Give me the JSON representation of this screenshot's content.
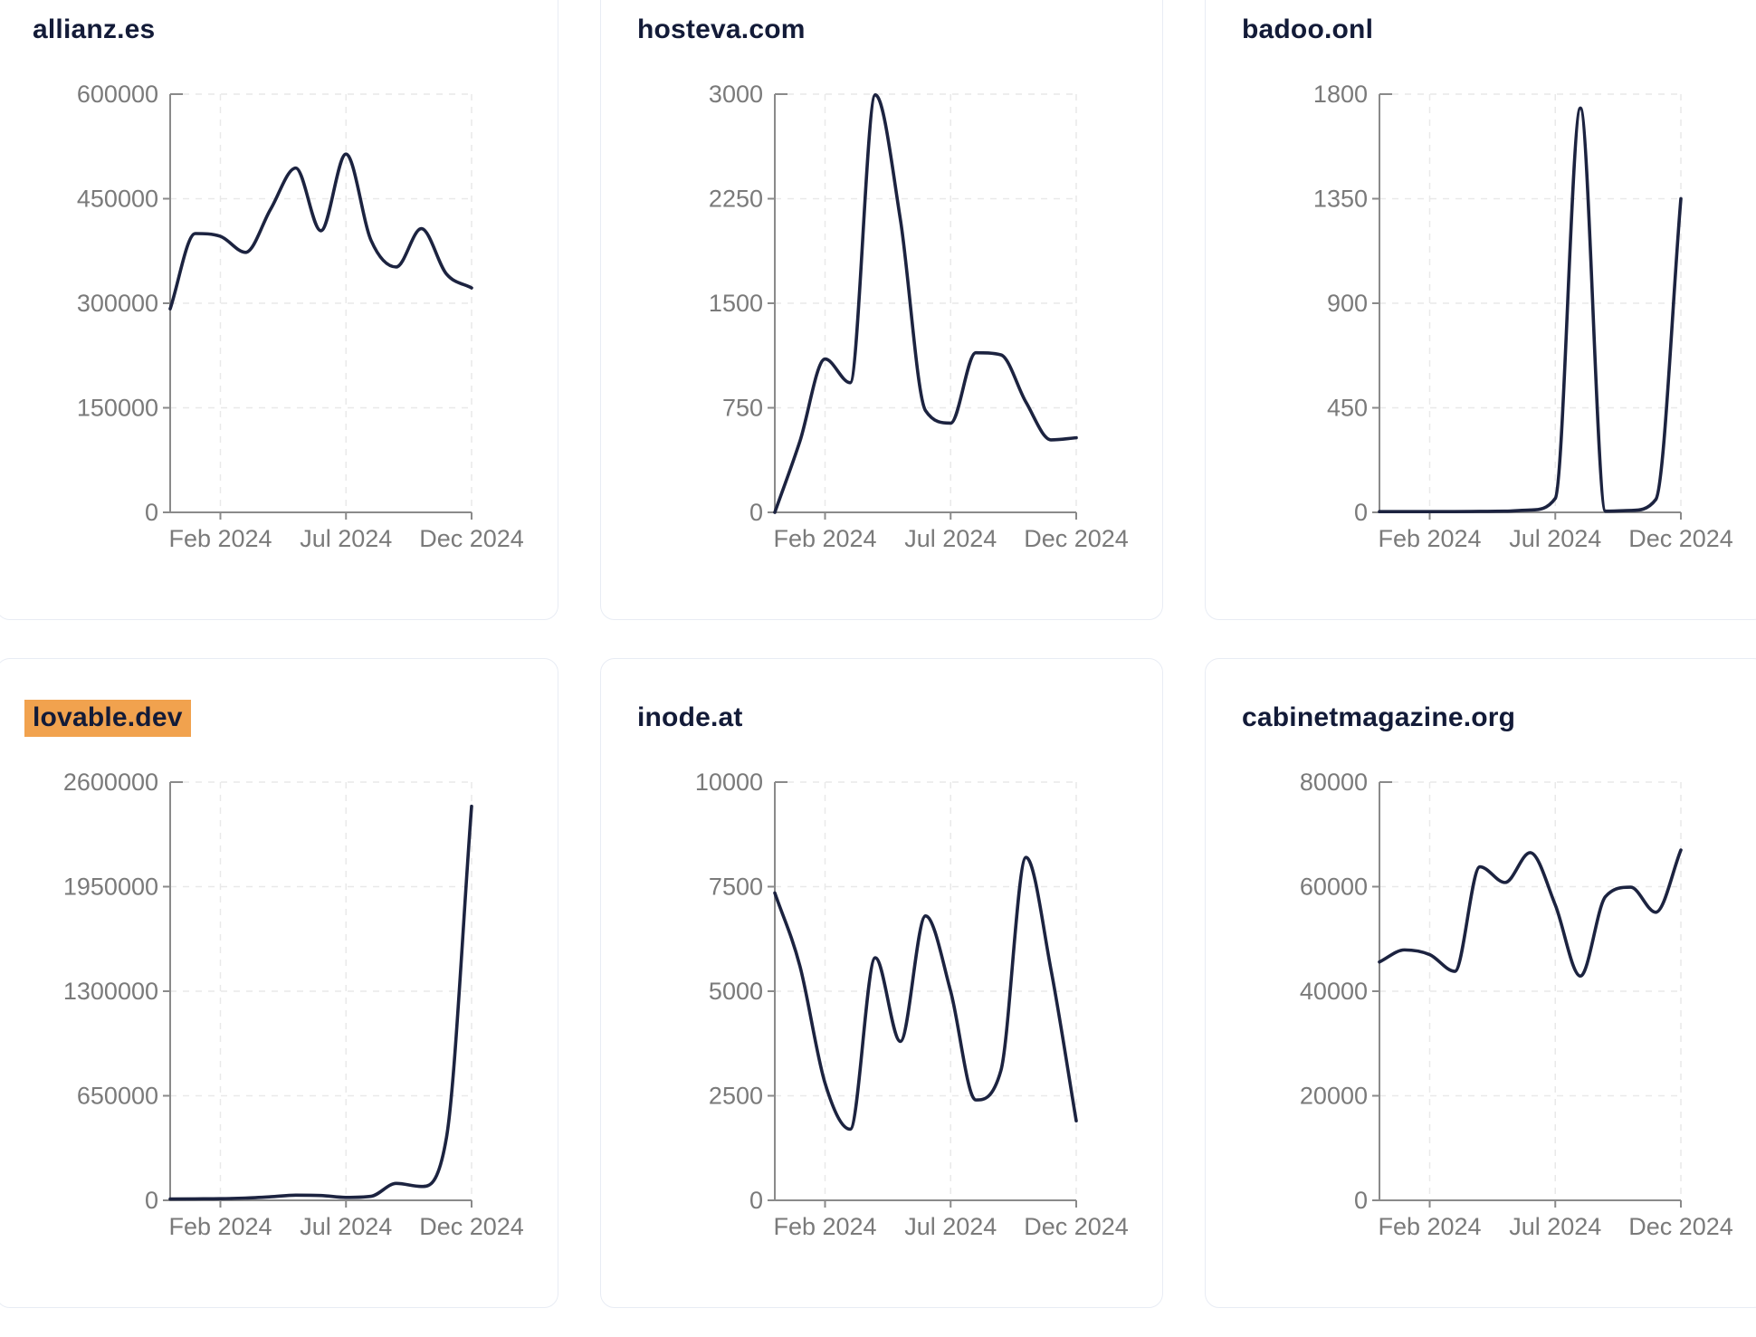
{
  "page": {
    "background": "#ffffff",
    "description": "Dashboard grid of monthly website-traffic sparkline charts for six domains"
  },
  "colors": {
    "line": "#1c2340",
    "title_text": "#131b38",
    "title_highlight": "#f1a24e",
    "axis": "#8a8a8a",
    "tick_label": "#7a7a7a",
    "gridline": "#e9e9e9",
    "card_border": "#e8ecf4",
    "card_background": "#ffffff"
  },
  "x_axis": {
    "tick_labels": [
      "Feb 2024",
      "Jul 2024",
      "Dec 2024"
    ],
    "tick_month_indices": [
      2,
      7,
      12
    ]
  },
  "chart_data": [
    {
      "type": "line",
      "title": "allianz.es",
      "title_highlighted": false,
      "x": [
        "2023-12",
        "2024-01",
        "2024-02",
        "2024-03",
        "2024-04",
        "2024-05",
        "2024-06",
        "2024-07",
        "2024-08",
        "2024-09",
        "2024-10",
        "2024-11",
        "2024-12"
      ],
      "values": [
        292000,
        400000,
        396000,
        373000,
        435000,
        494000,
        404000,
        514000,
        390000,
        352000,
        407000,
        342000,
        322000
      ],
      "ylim": [
        0,
        600000
      ],
      "y_ticks": [
        0,
        150000,
        300000,
        450000,
        600000
      ],
      "x_tick_labels": [
        "Feb 2024",
        "Jul 2024",
        "Dec 2024"
      ],
      "x_tick_indices": [
        2,
        7,
        12
      ],
      "grid": true,
      "legend": "none"
    },
    {
      "type": "line",
      "title": "hosteva.com",
      "title_highlighted": false,
      "x": [
        "2023-12",
        "2024-01",
        "2024-02",
        "2024-03",
        "2024-04",
        "2024-05",
        "2024-06",
        "2024-07",
        "2024-08",
        "2024-09",
        "2024-10",
        "2024-11",
        "2024-12"
      ],
      "values": [
        0,
        510,
        1100,
        930,
        2995,
        2100,
        730,
        640,
        1145,
        1130,
        790,
        520,
        535
      ],
      "ylim": [
        0,
        3000
      ],
      "y_ticks": [
        0,
        750,
        1500,
        2250,
        3000
      ],
      "x_tick_labels": [
        "Feb 2024",
        "Jul 2024",
        "Dec 2024"
      ],
      "x_tick_indices": [
        2,
        7,
        12
      ],
      "grid": true,
      "legend": "none"
    },
    {
      "type": "line",
      "title": "badoo.onl",
      "title_highlighted": false,
      "x": [
        "2023-12",
        "2024-01",
        "2024-02",
        "2024-03",
        "2024-04",
        "2024-05",
        "2024-06",
        "2024-07",
        "2024-08",
        "2024-09",
        "2024-10",
        "2024-11",
        "2024-12"
      ],
      "values": [
        3,
        3,
        3,
        3,
        4,
        5,
        10,
        60,
        1740,
        5,
        8,
        55,
        1350
      ],
      "ylim": [
        0,
        1800
      ],
      "y_ticks": [
        0,
        450,
        900,
        1350,
        1800
      ],
      "x_tick_labels": [
        "Feb 2024",
        "Jul 2024",
        "Dec 2024"
      ],
      "x_tick_indices": [
        2,
        7,
        12
      ],
      "grid": true,
      "legend": "none"
    },
    {
      "type": "line",
      "title": "lovable.dev",
      "title_highlighted": true,
      "x": [
        "2023-12",
        "2024-01",
        "2024-02",
        "2024-03",
        "2024-04",
        "2024-05",
        "2024-06",
        "2024-07",
        "2024-08",
        "2024-09",
        "2024-10",
        "2024-11",
        "2024-12"
      ],
      "values": [
        8000,
        9000,
        10000,
        14000,
        22000,
        32000,
        30000,
        18000,
        25000,
        105000,
        86000,
        390000,
        2450000
      ],
      "ylim": [
        0,
        2600000
      ],
      "y_ticks": [
        0,
        650000,
        1300000,
        1950000,
        2600000
      ],
      "x_tick_labels": [
        "Feb 2024",
        "Jul 2024",
        "Dec 2024"
      ],
      "x_tick_indices": [
        2,
        7,
        12
      ],
      "grid": true,
      "legend": "none"
    },
    {
      "type": "line",
      "title": "inode.at",
      "title_highlighted": false,
      "x": [
        "2023-12",
        "2024-01",
        "2024-02",
        "2024-03",
        "2024-04",
        "2024-05",
        "2024-06",
        "2024-07",
        "2024-08",
        "2024-09",
        "2024-10",
        "2024-11",
        "2024-12"
      ],
      "values": [
        7350,
        5600,
        2800,
        1700,
        5800,
        3800,
        6800,
        5000,
        2400,
        3100,
        8200,
        5500,
        1900
      ],
      "ylim": [
        0,
        10000
      ],
      "y_ticks": [
        0,
        2500,
        5000,
        7500,
        10000
      ],
      "x_tick_labels": [
        "Feb 2024",
        "Jul 2024",
        "Dec 2024"
      ],
      "x_tick_indices": [
        2,
        7,
        12
      ],
      "grid": true,
      "legend": "none"
    },
    {
      "type": "line",
      "title": "cabinetmagazine.org",
      "title_highlighted": false,
      "x": [
        "2023-12",
        "2024-01",
        "2024-02",
        "2024-03",
        "2024-04",
        "2024-05",
        "2024-06",
        "2024-07",
        "2024-08",
        "2024-09",
        "2024-10",
        "2024-11",
        "2024-12"
      ],
      "values": [
        45600,
        47900,
        47000,
        43800,
        63800,
        60800,
        66500,
        56500,
        42900,
        58100,
        59900,
        55100,
        67000
      ],
      "ylim": [
        0,
        80000
      ],
      "y_ticks": [
        0,
        20000,
        40000,
        60000,
        80000
      ],
      "x_tick_labels": [
        "Feb 2024",
        "Jul 2024",
        "Dec 2024"
      ],
      "x_tick_indices": [
        2,
        7,
        12
      ],
      "grid": true,
      "legend": "none"
    }
  ],
  "layout_grid": {
    "columns": 3,
    "rows": 2
  }
}
